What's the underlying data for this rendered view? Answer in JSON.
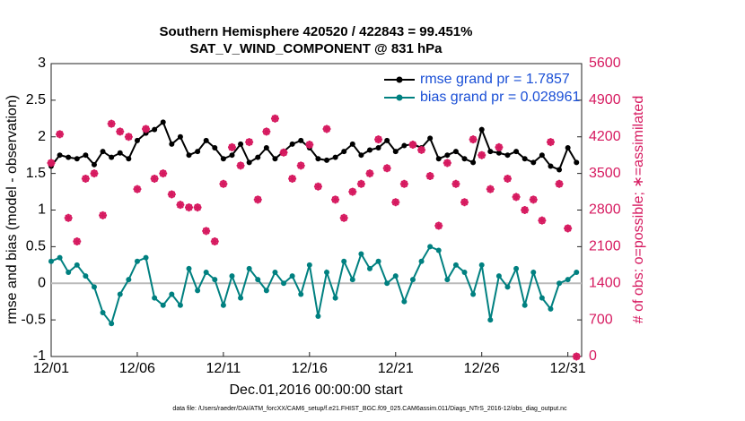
{
  "chart_data": {
    "type": "line",
    "title": "Southern Hemisphere 420520 / 422843 = 99.451%",
    "subtitle": "SAT_V_WIND_COMPONENT @ 831 hPa",
    "xlabel": "Dec.01,2016 00:00:00 start",
    "ylabel": "rmse and bias (model - observation)",
    "y2label": "# of obs: o=possible; ∗=assimilated",
    "footnote": "data file: /Users/raeder/DAI/ATM_forcXX/CAM6_setup/f.e21.FHIST_BGC.f09_025.CAM6assim.011/Diags_NTrS_2016-12/obs_diag_output.nc",
    "legend": "upper right",
    "xlim": [
      0,
      30.8
    ],
    "xticks": [
      {
        "value": 0,
        "label": "12/01"
      },
      {
        "value": 5,
        "label": "12/06"
      },
      {
        "value": 10,
        "label": "12/11"
      },
      {
        "value": 15,
        "label": "12/16"
      },
      {
        "value": 20,
        "label": "12/21"
      },
      {
        "value": 25,
        "label": "12/26"
      },
      {
        "value": 30,
        "label": "12/31"
      }
    ],
    "ylim": [
      -1,
      3
    ],
    "yticks": [
      -1,
      -0.5,
      0,
      0.5,
      1,
      1.5,
      2,
      2.5,
      3
    ],
    "y2lim": [
      0,
      5600
    ],
    "y2ticks": [
      0,
      700,
      1400,
      2100,
      2800,
      3500,
      4200,
      4900,
      5600
    ],
    "x": [
      0,
      0.5,
      1,
      1.5,
      2,
      2.5,
      3,
      3.5,
      4,
      4.5,
      5,
      5.5,
      6,
      6.5,
      7,
      7.5,
      8,
      8.5,
      9,
      9.5,
      10,
      10.5,
      11,
      11.5,
      12,
      12.5,
      13,
      13.5,
      14,
      14.5,
      15,
      15.5,
      16,
      16.5,
      17,
      17.5,
      18,
      18.5,
      19,
      19.5,
      20,
      20.5,
      21,
      21.5,
      22,
      22.5,
      23,
      23.5,
      24,
      24.5,
      25,
      25.5,
      26,
      26.5,
      27,
      27.5,
      28,
      28.5,
      29,
      29.5,
      30,
      30.5
    ],
    "series": [
      {
        "name": "rmse grand pr = 1.7857",
        "color": "#000000",
        "marker": "dot",
        "values": [
          1.6,
          1.75,
          1.72,
          1.7,
          1.75,
          1.62,
          1.8,
          1.72,
          1.78,
          1.7,
          1.95,
          2.05,
          2.1,
          2.2,
          1.9,
          2.0,
          1.75,
          1.8,
          1.95,
          1.85,
          1.7,
          1.75,
          1.9,
          1.65,
          1.72,
          1.85,
          1.7,
          1.8,
          1.9,
          1.95,
          1.85,
          1.7,
          1.68,
          1.72,
          1.8,
          1.9,
          1.75,
          1.82,
          1.85,
          1.95,
          1.8,
          1.88,
          1.9,
          1.85,
          1.98,
          1.7,
          1.75,
          1.8,
          1.7,
          1.65,
          2.1,
          1.8,
          1.78,
          1.75,
          1.8,
          1.7,
          1.65,
          1.75,
          1.6,
          1.55,
          1.85,
          1.65
        ]
      },
      {
        "name": "bias grand pr = 0.028961",
        "color": "#008080",
        "marker": "dot",
        "values": [
          0.3,
          0.35,
          0.15,
          0.25,
          0.1,
          -0.05,
          -0.4,
          -0.55,
          -0.15,
          0.05,
          0.3,
          0.35,
          -0.2,
          -0.3,
          -0.15,
          -0.3,
          0.2,
          -0.1,
          0.15,
          0.05,
          -0.3,
          0.1,
          -0.2,
          0.2,
          0.05,
          -0.1,
          0.15,
          0.0,
          0.1,
          -0.15,
          0.25,
          -0.45,
          0.15,
          -0.2,
          0.3,
          0.05,
          0.4,
          0.2,
          0.3,
          0.0,
          0.1,
          -0.25,
          0.05,
          0.3,
          0.5,
          0.45,
          0.05,
          0.25,
          0.15,
          -0.15,
          0.25,
          -0.5,
          0.1,
          -0.05,
          0.2,
          -0.3,
          0.15,
          -0.2,
          -0.35,
          0.0,
          0.05,
          0.15
        ]
      },
      {
        "color": "#d6195f",
        "axis": "y2",
        "marker": "star",
        "values": [
          3700,
          4250,
          2650,
          2200,
          3400,
          3500,
          2700,
          4450,
          4300,
          4200,
          3200,
          4350,
          3400,
          3500,
          3100,
          2900,
          2850,
          2850,
          2400,
          2200,
          3300,
          4000,
          3650,
          4100,
          3000,
          4300,
          4550,
          3900,
          3400,
          3650,
          4050,
          3250,
          4350,
          3000,
          2650,
          3150,
          3300,
          3500,
          4150,
          3600,
          2950,
          3300,
          4050,
          3950,
          3450,
          2500,
          3700,
          3300,
          2950,
          4150,
          3850,
          3200,
          4000,
          3400,
          3050,
          2800,
          3000,
          2600,
          4100,
          3300,
          2450,
          0
        ]
      }
    ]
  }
}
